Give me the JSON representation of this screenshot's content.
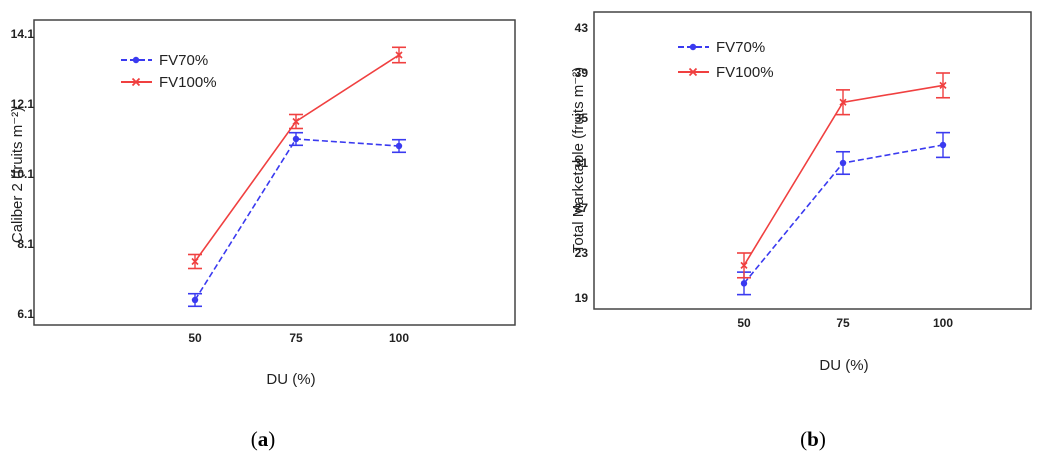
{
  "chart_data": [
    {
      "type": "line",
      "panel": "a",
      "caption": {
        "open": "(",
        "letter": "a",
        "close": ")"
      },
      "title": "",
      "xlabel": "DU (%)",
      "ylabel": "Caliber 2 (fruits m⁻²)",
      "x": [
        50,
        75,
        100
      ],
      "x_tick_labels": [
        "50",
        "75",
        "100"
      ],
      "y_ticks": [
        6.1,
        8.1,
        10.1,
        12.1,
        14.1
      ],
      "y_tick_labels": [
        "6.1",
        "8.1",
        "10.1",
        "12.1",
        "14.1"
      ],
      "ylim": [
        5.9,
        14.2
      ],
      "grid": false,
      "legend_position": "top-left",
      "series": [
        {
          "name": "FV70%",
          "color": "#3a3af0",
          "line_style": "dashed",
          "marker": "circle",
          "values": [
            6.5,
            11.1,
            10.9
          ],
          "error": [
            0.18,
            0.18,
            0.18
          ]
        },
        {
          "name": "FV100%",
          "color": "#f04040",
          "line_style": "solid",
          "marker": "cross",
          "values": [
            7.6,
            11.6,
            13.5
          ],
          "error": [
            0.2,
            0.2,
            0.22
          ]
        }
      ]
    },
    {
      "type": "line",
      "panel": "b",
      "caption": {
        "open": "(",
        "letter": "b",
        "close": ")"
      },
      "title": "",
      "xlabel": "DU (%)",
      "ylabel": "Total Marketable (fruits m⁻²)",
      "x": [
        50,
        75,
        100
      ],
      "x_tick_labels": [
        "50",
        "75",
        "100"
      ],
      "y_ticks": [
        19,
        23,
        27,
        31,
        35,
        39,
        43
      ],
      "y_tick_labels": [
        "19",
        "23",
        "27",
        "31",
        "35",
        "39",
        "43"
      ],
      "ylim": [
        18,
        43.5
      ],
      "grid": false,
      "legend_position": "top-left",
      "series": [
        {
          "name": "FV70%",
          "color": "#3a3af0",
          "line_style": "dashed",
          "marker": "circle",
          "values": [
            20.3,
            31.0,
            32.6
          ],
          "error": [
            1.0,
            1.0,
            1.1
          ]
        },
        {
          "name": "FV100%",
          "color": "#f04040",
          "line_style": "solid",
          "marker": "cross",
          "values": [
            21.9,
            36.4,
            37.9
          ],
          "error": [
            1.1,
            1.1,
            1.1
          ]
        }
      ]
    }
  ]
}
